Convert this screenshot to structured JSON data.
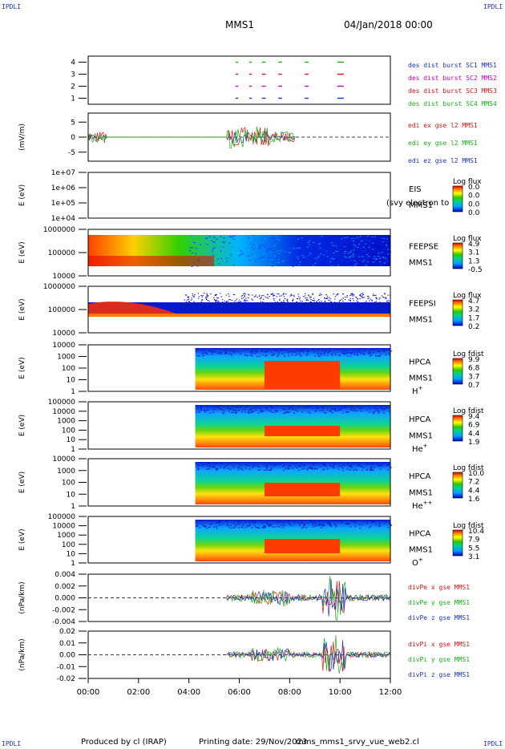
{
  "corners": {
    "label": "IPDLI"
  },
  "header": {
    "spacecraft": "MMS1",
    "datetime": "04/Jan/2018 00:00"
  },
  "footer": {
    "produced": "Produced by cl (IRAP)",
    "printing": "Printing date: 29/Nov/2023",
    "file": "mms_mms1_srvy_vue_web2.cl"
  },
  "chart_data": {
    "type": "multi-panel",
    "x_range": [
      "00:00",
      "12:00"
    ],
    "x_ticks": [
      "00:00",
      "02:00",
      "04:00",
      "06:00",
      "08:00",
      "10:00",
      "12:00"
    ],
    "panels": [
      {
        "id": "burst",
        "type": "scatter",
        "ylabel": "",
        "ylim": [
          0.5,
          4.5
        ],
        "yticks": [
          "1",
          "2",
          "3",
          "4"
        ],
        "legend": [
          {
            "name": "des dist burst SC1 MMS1",
            "color": "#1a33c8"
          },
          {
            "name": "des dist burst SC2 MMS2",
            "color": "#c800c8"
          },
          {
            "name": "des dist burst SC3 MMS3",
            "color": "#dc1414"
          },
          {
            "name": "des dist burst SC4 MMS4",
            "color": "#14b414"
          }
        ],
        "series": [
          {
            "y": 4,
            "color": "#14b414",
            "intervals_hours": [
              [
                5.85,
                5.95
              ],
              [
                6.4,
                6.5
              ],
              [
                6.9,
                7.05
              ],
              [
                7.55,
                7.7
              ],
              [
                8.6,
                8.75
              ],
              [
                9.9,
                10.15
              ]
            ]
          },
          {
            "y": 3,
            "color": "#dc1414",
            "intervals_hours": [
              [
                5.85,
                5.95
              ],
              [
                6.4,
                6.5
              ],
              [
                6.9,
                7.05
              ],
              [
                7.55,
                7.7
              ],
              [
                8.6,
                8.75
              ],
              [
                9.9,
                10.15
              ]
            ]
          },
          {
            "y": 2,
            "color": "#c800c8",
            "intervals_hours": [
              [
                5.85,
                5.95
              ],
              [
                6.4,
                6.5
              ],
              [
                6.9,
                7.05
              ],
              [
                7.55,
                7.7
              ],
              [
                8.6,
                8.75
              ],
              [
                9.9,
                10.15
              ]
            ]
          },
          {
            "y": 1,
            "color": "#1a33c8",
            "intervals_hours": [
              [
                5.85,
                5.95
              ],
              [
                6.4,
                6.5
              ],
              [
                6.9,
                7.05
              ],
              [
                7.55,
                7.7
              ],
              [
                8.6,
                8.75
              ],
              [
                9.9,
                10.15
              ]
            ]
          }
        ]
      },
      {
        "id": "edi",
        "type": "line",
        "ylabel": "(mV/m)",
        "ylim": [
          -8,
          8
        ],
        "yticks": [
          "5",
          "0",
          "-5"
        ],
        "legend": [
          {
            "name": "edi ex gse l2 MMS1",
            "color": "#dc1414"
          },
          {
            "name": "edi ey gse l2 MMS1",
            "color": "#14b414"
          },
          {
            "name": "edi ez gse l2 MMS1",
            "color": "#1a33c8"
          }
        ]
      },
      {
        "id": "eis",
        "type": "heatmap",
        "ylabel": "E (eV)",
        "yticks": [
          "1e+07",
          "1e+06",
          "1e+05",
          "1e+04"
        ],
        "instrument": "EIS",
        "overlay": "(svy electron to",
        "sc": "MMS1",
        "colorbar": {
          "title": "Log flux",
          "ticks": [
            "0.0",
            "0.0",
            "0.0",
            "0.0"
          ]
        }
      },
      {
        "id": "feepse",
        "type": "heatmap",
        "ylabel": "E (eV)",
        "yticks": [
          "1000000",
          "100000",
          "10000"
        ],
        "instrument": "FEEPSE",
        "sc": "MMS1",
        "colorbar": {
          "title": "Log flux",
          "ticks": [
            "4.9",
            "3.1",
            "1.3",
            "-0.5"
          ]
        }
      },
      {
        "id": "feepsi",
        "type": "heatmap",
        "ylabel": "E (eV)",
        "yticks": [
          "1000000",
          "100000",
          "10000"
        ],
        "instrument": "FEEPSI",
        "sc": "MMS1",
        "colorbar": {
          "title": "Log flux",
          "ticks": [
            "4.7",
            "3.2",
            "1.7",
            "0.2"
          ]
        }
      },
      {
        "id": "hpca_h",
        "type": "heatmap",
        "ylabel": "E (eV)",
        "yticks": [
          "10000",
          "1000",
          "100",
          "10",
          "1"
        ],
        "instrument": "HPCA",
        "sc": "MMS1",
        "species": "H",
        "charge": "+",
        "colorbar": {
          "title": "Log fdist",
          "ticks": [
            "9.9",
            "6.8",
            "3.7",
            "0.7"
          ]
        }
      },
      {
        "id": "hpca_he1",
        "type": "heatmap",
        "ylabel": "E (eV)",
        "yticks": [
          "100000",
          "10000",
          "1000",
          "100",
          "10",
          "1"
        ],
        "instrument": "HPCA",
        "sc": "MMS1",
        "species": "He",
        "charge": "+",
        "colorbar": {
          "title": "Log fdist",
          "ticks": [
            "9.4",
            "6.9",
            "4.4",
            "1.9"
          ]
        }
      },
      {
        "id": "hpca_he2",
        "type": "heatmap",
        "ylabel": "E (eV)",
        "yticks": [
          "10000",
          "1000",
          "100",
          "10",
          "1"
        ],
        "instrument": "HPCA",
        "sc": "MMS1",
        "species": "He",
        "charge": "++",
        "colorbar": {
          "title": "Log fdist",
          "ticks": [
            "10.0",
            "7.2",
            "4.4",
            "1.6"
          ]
        }
      },
      {
        "id": "hpca_o",
        "type": "heatmap",
        "ylabel": "E (eV)",
        "yticks": [
          "100000",
          "10000",
          "1000",
          "100",
          "10",
          "1"
        ],
        "instrument": "HPCA",
        "sc": "MMS1",
        "species": "O",
        "charge": "+",
        "colorbar": {
          "title": "Log fdist",
          "ticks": [
            "10.4",
            "7.9",
            "5.5",
            "3.1"
          ]
        }
      },
      {
        "id": "divpe",
        "type": "line",
        "ylabel": "(nPa/km)",
        "ylim": [
          -0.0045,
          0.0045
        ],
        "yticks": [
          "0.004",
          "0.002",
          "0.000",
          "-0.002",
          "-0.004"
        ],
        "legend": [
          {
            "name": "divPe x gse MMS1",
            "color": "#dc1414"
          },
          {
            "name": "divPe y gse MMS1",
            "color": "#14b414"
          },
          {
            "name": "divPe z gse MMS1",
            "color": "#1a33c8"
          }
        ]
      },
      {
        "id": "divpi",
        "type": "line",
        "ylabel": "(nPa/km)",
        "ylim": [
          -0.022,
          0.022
        ],
        "yticks": [
          "0.02",
          "0.01",
          "0.00",
          "-0.01",
          "-0.02"
        ],
        "legend": [
          {
            "name": "divPi x gse MMS1",
            "color": "#dc1414"
          },
          {
            "name": "divPi y gse MMS1",
            "color": "#14b414"
          },
          {
            "name": "divPi z gse MMS1",
            "color": "#1a33c8"
          }
        ]
      }
    ]
  }
}
